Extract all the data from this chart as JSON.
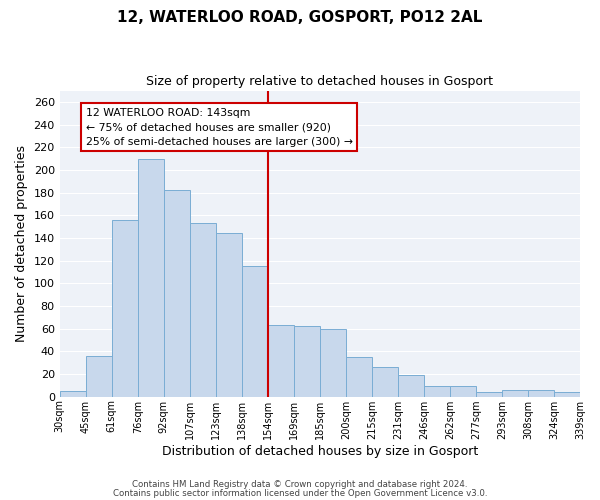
{
  "title": "12, WATERLOO ROAD, GOSPORT, PO12 2AL",
  "subtitle": "Size of property relative to detached houses in Gosport",
  "xlabel": "Distribution of detached houses by size in Gosport",
  "ylabel": "Number of detached properties",
  "bar_labels": [
    "30sqm",
    "45sqm",
    "61sqm",
    "76sqm",
    "92sqm",
    "107sqm",
    "123sqm",
    "138sqm",
    "154sqm",
    "169sqm",
    "185sqm",
    "200sqm",
    "215sqm",
    "231sqm",
    "246sqm",
    "262sqm",
    "277sqm",
    "293sqm",
    "308sqm",
    "324sqm",
    "339sqm"
  ],
  "bar_heights": [
    5,
    36,
    156,
    210,
    182,
    153,
    144,
    115,
    63,
    62,
    60,
    35,
    26,
    19,
    9,
    9,
    4,
    6,
    6,
    4
  ],
  "bar_color": "#c8d8ec",
  "bar_edge_color": "#7aadd4",
  "vline_index": 7,
  "vline_color": "#cc0000",
  "annotation_text": "12 WATERLOO ROAD: 143sqm\n← 75% of detached houses are smaller (920)\n25% of semi-detached houses are larger (300) →",
  "annotation_box_edge": "#cc0000",
  "ylim": [
    0,
    270
  ],
  "yticks": [
    0,
    20,
    40,
    60,
    80,
    100,
    120,
    140,
    160,
    180,
    200,
    220,
    240,
    260
  ],
  "footer_line1": "Contains HM Land Registry data © Crown copyright and database right 2024.",
  "footer_line2": "Contains public sector information licensed under the Open Government Licence v3.0.",
  "bg_color": "#ffffff",
  "plot_bg_color": "#eef2f8",
  "grid_color": "#ffffff"
}
